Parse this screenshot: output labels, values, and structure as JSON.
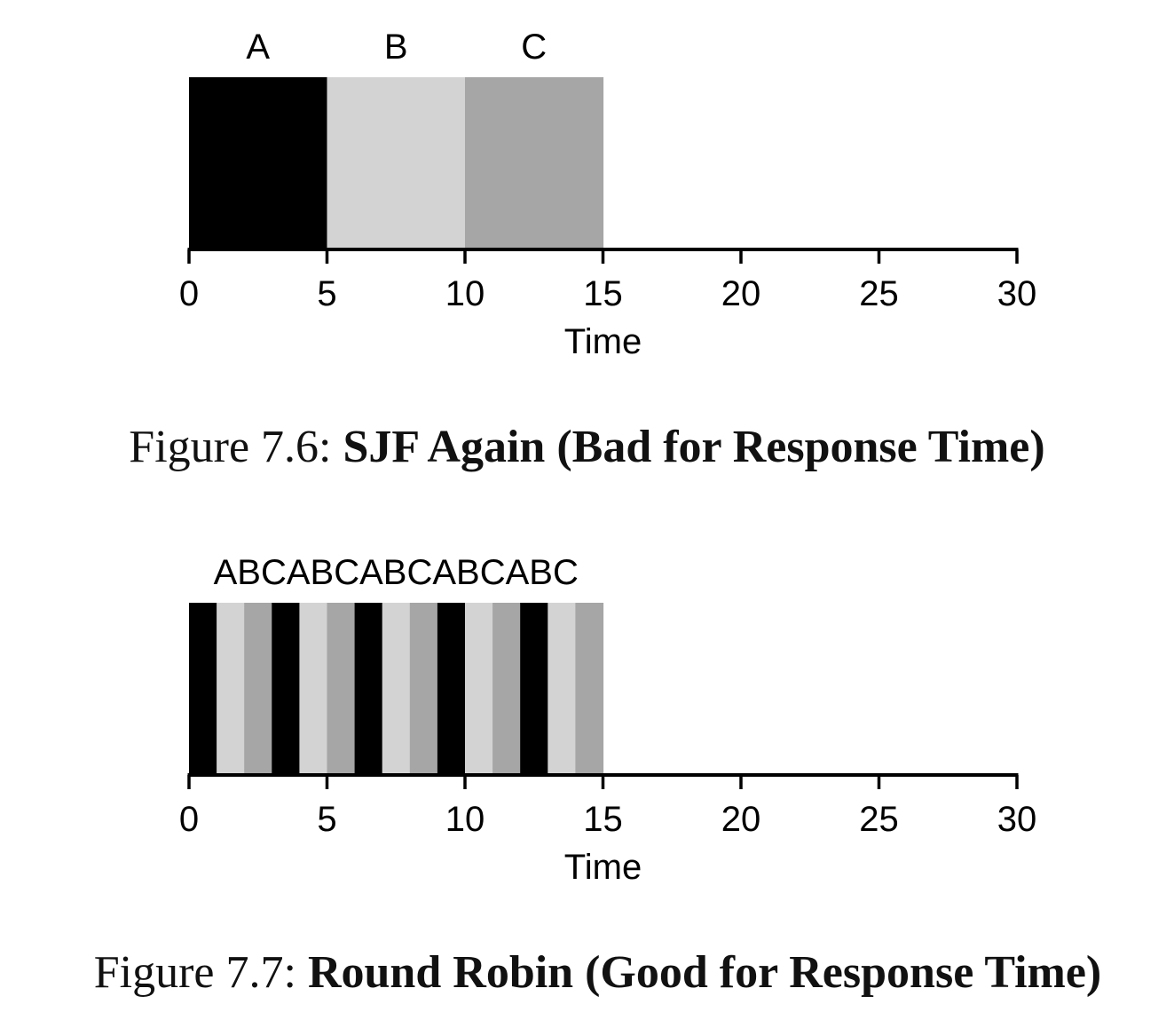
{
  "colors": {
    "A": "#000000",
    "B": "#d3d3d3",
    "C": "#a6a6a6",
    "axis": "#000000"
  },
  "chart_data": [
    {
      "type": "timeline",
      "xlabel": "Time",
      "xlim": [
        0,
        30
      ],
      "xticks": [
        0,
        5,
        10,
        15,
        20,
        25,
        30
      ],
      "tick_labels": [
        "0",
        "5",
        "10",
        "15",
        "20",
        "25",
        "30"
      ],
      "segments": [
        {
          "job": "A",
          "start": 0,
          "end": 5
        },
        {
          "job": "B",
          "start": 5,
          "end": 10
        },
        {
          "job": "C",
          "start": 10,
          "end": 15
        }
      ],
      "job_labels": [
        {
          "text": "A",
          "x": 2.5
        },
        {
          "text": "B",
          "x": 7.5
        },
        {
          "text": "C",
          "x": 12.5
        }
      ]
    },
    {
      "type": "timeline",
      "xlabel": "Time",
      "xlim": [
        0,
        30
      ],
      "xticks": [
        0,
        5,
        10,
        15,
        20,
        25,
        30
      ],
      "tick_labels": [
        "0",
        "5",
        "10",
        "15",
        "20",
        "25",
        "30"
      ],
      "segments": [
        {
          "job": "A",
          "start": 0,
          "end": 1
        },
        {
          "job": "B",
          "start": 1,
          "end": 2
        },
        {
          "job": "C",
          "start": 2,
          "end": 3
        },
        {
          "job": "A",
          "start": 3,
          "end": 4
        },
        {
          "job": "B",
          "start": 4,
          "end": 5
        },
        {
          "job": "C",
          "start": 5,
          "end": 6
        },
        {
          "job": "A",
          "start": 6,
          "end": 7
        },
        {
          "job": "B",
          "start": 7,
          "end": 8
        },
        {
          "job": "C",
          "start": 8,
          "end": 9
        },
        {
          "job": "A",
          "start": 9,
          "end": 10
        },
        {
          "job": "B",
          "start": 10,
          "end": 11
        },
        {
          "job": "C",
          "start": 11,
          "end": 12
        },
        {
          "job": "A",
          "start": 12,
          "end": 13
        },
        {
          "job": "B",
          "start": 13,
          "end": 14
        },
        {
          "job": "C",
          "start": 14,
          "end": 15
        }
      ],
      "job_labels": [
        {
          "text": "ABCABCABCABCABC",
          "x": 7.5
        }
      ]
    }
  ],
  "captions": [
    {
      "prefix": "Figure 7.6:",
      "title": "SJF Again (Bad for Response Time)"
    },
    {
      "prefix": "Figure 7.7:",
      "title": "Round Robin (Good for Response Time)"
    }
  ]
}
